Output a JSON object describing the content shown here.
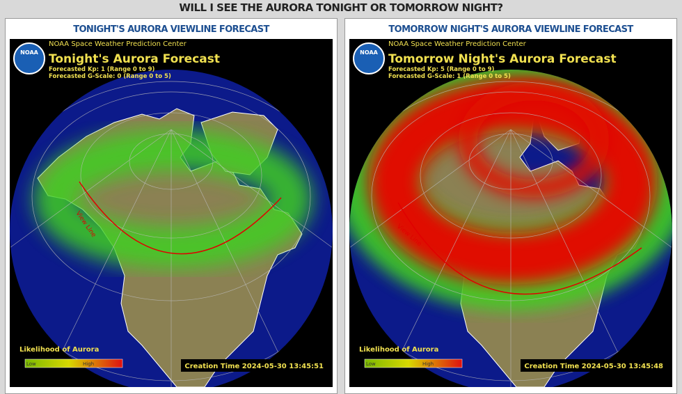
{
  "header": {
    "title": "WILL I SEE THE AURORA TONIGHT OR TOMORROW NIGHT?"
  },
  "panels": [
    {
      "heading": "TONIGHT'S AURORA VIEWLINE FORECAST",
      "logo": "NOAA",
      "agency": "NOAA Space Weather Prediction Center",
      "title": "Tonight's Aurora Forecast",
      "kp": "Forecasted Kp: 1 (Range 0 to 9)",
      "gscale": "Forecasted G-Scale: 0 (Range 0 to 5)",
      "view_line": "View Line",
      "legend": "Likelihood of Aurora",
      "legend_low": "Low",
      "legend_high": "High",
      "creation": "Creation Time 2024-05-30 13:45:51"
    },
    {
      "heading": "TOMORROW NIGHT'S AURORA VIEWLINE FORECAST",
      "logo": "NOAA",
      "agency": "NOAA Space Weather Prediction Center",
      "title": "Tomorrow Night's Aurora Forecast",
      "kp": "Forecasted Kp: 5 (Range 0 to 9)",
      "gscale": "Forecasted G-Scale: 1 (Range 0 to 5)",
      "view_line": "View Line",
      "legend": "Likelihood of Aurora",
      "legend_low": "Low",
      "legend_high": "High",
      "creation": "Creation Time 2024-05-30 13:45:48"
    }
  ]
}
